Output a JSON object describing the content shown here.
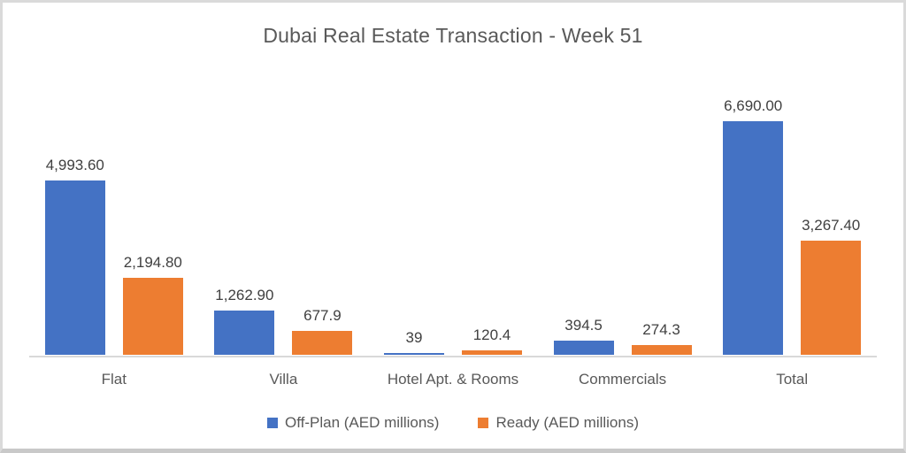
{
  "chart_data": {
    "type": "bar",
    "title": "Dubai Real Estate Transaction - Week 51",
    "categories": [
      "Flat",
      "Villa",
      "Hotel Apt. & Rooms",
      "Commercials",
      "Total"
    ],
    "series": [
      {
        "name": "Off-Plan (AED millions)",
        "color": "#4472C4",
        "values": [
          4993.6,
          1262.9,
          39,
          394.5,
          6690.0
        ],
        "labels": [
          "4,993.60",
          "1,262.90",
          "39",
          "394.5",
          "6,690.00"
        ]
      },
      {
        "name": "Ready (AED millions)",
        "color": "#ED7D31",
        "values": [
          2194.8,
          677.9,
          120.4,
          274.3,
          3267.4
        ],
        "labels": [
          "2,194.80",
          "677.9",
          "120.4",
          "274.3",
          "3,267.40"
        ]
      }
    ],
    "xlabel": "",
    "ylabel": "",
    "ylim": [
      0,
      6690
    ],
    "grid": false,
    "y_axis_visible": false,
    "legend_position": "bottom",
    "data_labels": true
  },
  "styles": {
    "title_color": "#595959",
    "data_label_color": "#404040",
    "category_label_color": "#595959",
    "legend_text_color": "#595959",
    "axis_line_color": "#d9d9d9",
    "frame_border_color": "#dadada",
    "background_color": "#ffffff"
  }
}
